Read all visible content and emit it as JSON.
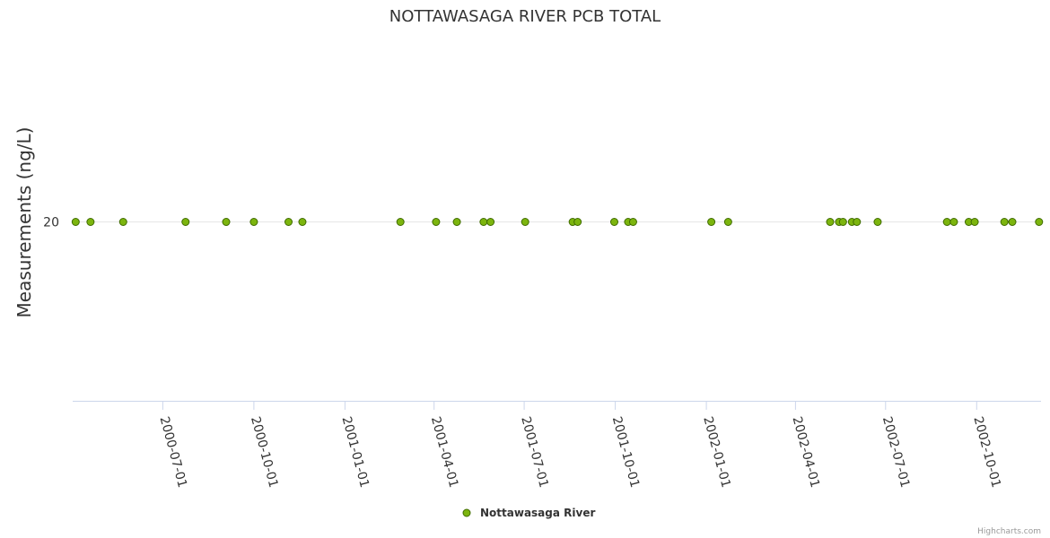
{
  "chart_data": {
    "type": "scatter",
    "title": "NOTTAWASAGA RIVER PCB TOTAL",
    "xlabel": "",
    "ylabel": "Measurements (ng/L)",
    "xlim": [
      "2000-04-01",
      "2002-12-05"
    ],
    "y_ticks": [
      20
    ],
    "x_ticks": [
      "2000-07-01",
      "2000-10-01",
      "2001-01-01",
      "2001-04-01",
      "2001-07-01",
      "2001-10-01",
      "2002-01-01",
      "2002-04-01",
      "2002-07-01",
      "2002-10-01"
    ],
    "legend": {
      "position": "bottom-center"
    },
    "series": [
      {
        "name": "Nottawasaga River",
        "color": "#7cb50e",
        "stroke": "#3f6b00",
        "points": [
          {
            "x": "2000-04-04",
            "y": 20
          },
          {
            "x": "2000-04-19",
            "y": 20
          },
          {
            "x": "2000-05-22",
            "y": 20
          },
          {
            "x": "2000-07-24",
            "y": 20
          },
          {
            "x": "2000-09-03",
            "y": 20
          },
          {
            "x": "2000-10-01",
            "y": 20
          },
          {
            "x": "2000-11-05",
            "y": 20
          },
          {
            "x": "2000-11-19",
            "y": 20
          },
          {
            "x": "2001-02-26",
            "y": 20
          },
          {
            "x": "2001-04-03",
            "y": 20
          },
          {
            "x": "2001-04-24",
            "y": 20
          },
          {
            "x": "2001-05-21",
            "y": 20
          },
          {
            "x": "2001-05-28",
            "y": 20
          },
          {
            "x": "2001-07-02",
            "y": 20
          },
          {
            "x": "2001-08-19",
            "y": 20
          },
          {
            "x": "2001-08-24",
            "y": 20
          },
          {
            "x": "2001-09-30",
            "y": 20
          },
          {
            "x": "2001-10-14",
            "y": 20
          },
          {
            "x": "2001-10-19",
            "y": 20
          },
          {
            "x": "2002-01-06",
            "y": 20
          },
          {
            "x": "2002-01-23",
            "y": 20
          },
          {
            "x": "2002-05-06",
            "y": 20
          },
          {
            "x": "2002-05-15",
            "y": 20
          },
          {
            "x": "2002-05-19",
            "y": 20
          },
          {
            "x": "2002-05-28",
            "y": 20
          },
          {
            "x": "2002-06-02",
            "y": 20
          },
          {
            "x": "2002-06-23",
            "y": 20
          },
          {
            "x": "2002-09-01",
            "y": 20
          },
          {
            "x": "2002-09-08",
            "y": 20
          },
          {
            "x": "2002-09-23",
            "y": 20
          },
          {
            "x": "2002-09-29",
            "y": 20
          },
          {
            "x": "2002-10-29",
            "y": 20
          },
          {
            "x": "2002-11-06",
            "y": 20
          },
          {
            "x": "2002-12-03",
            "y": 20
          }
        ]
      }
    ]
  },
  "credits": "Highcharts.com"
}
